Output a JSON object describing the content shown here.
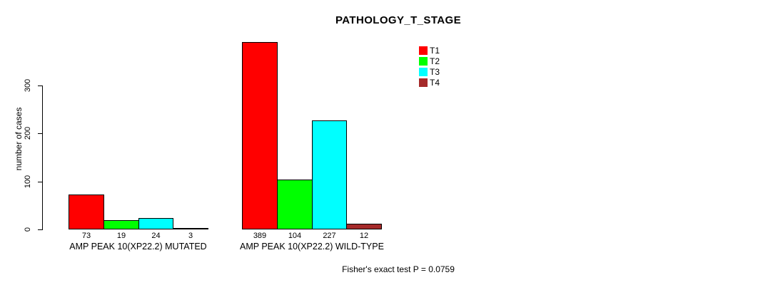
{
  "chart_data": {
    "type": "bar",
    "title": "PATHOLOGY_T_STAGE",
    "xlabel": "",
    "ylabel": "number of cases",
    "ylim": [
      0,
      300
    ],
    "yticks": [
      0,
      100,
      200,
      300
    ],
    "grid": false,
    "legend_position": "top-right",
    "categories": [
      "AMP PEAK 10(XP22.2) MUTATED",
      "AMP PEAK 10(XP22.2) WILD-TYPE"
    ],
    "series": [
      {
        "name": "T1",
        "color": "#ff0000",
        "values": [
          73,
          389
        ]
      },
      {
        "name": "T2",
        "color": "#00ff00",
        "values": [
          19,
          104
        ]
      },
      {
        "name": "T3",
        "color": "#00ffff",
        "values": [
          24,
          227
        ]
      },
      {
        "name": "T4",
        "color": "#a52a2a",
        "values": [
          3,
          12
        ]
      }
    ],
    "annotation": "Fisher's exact test P = 0.0759",
    "axis_color": "#000000",
    "background_color": "#ffffff"
  }
}
